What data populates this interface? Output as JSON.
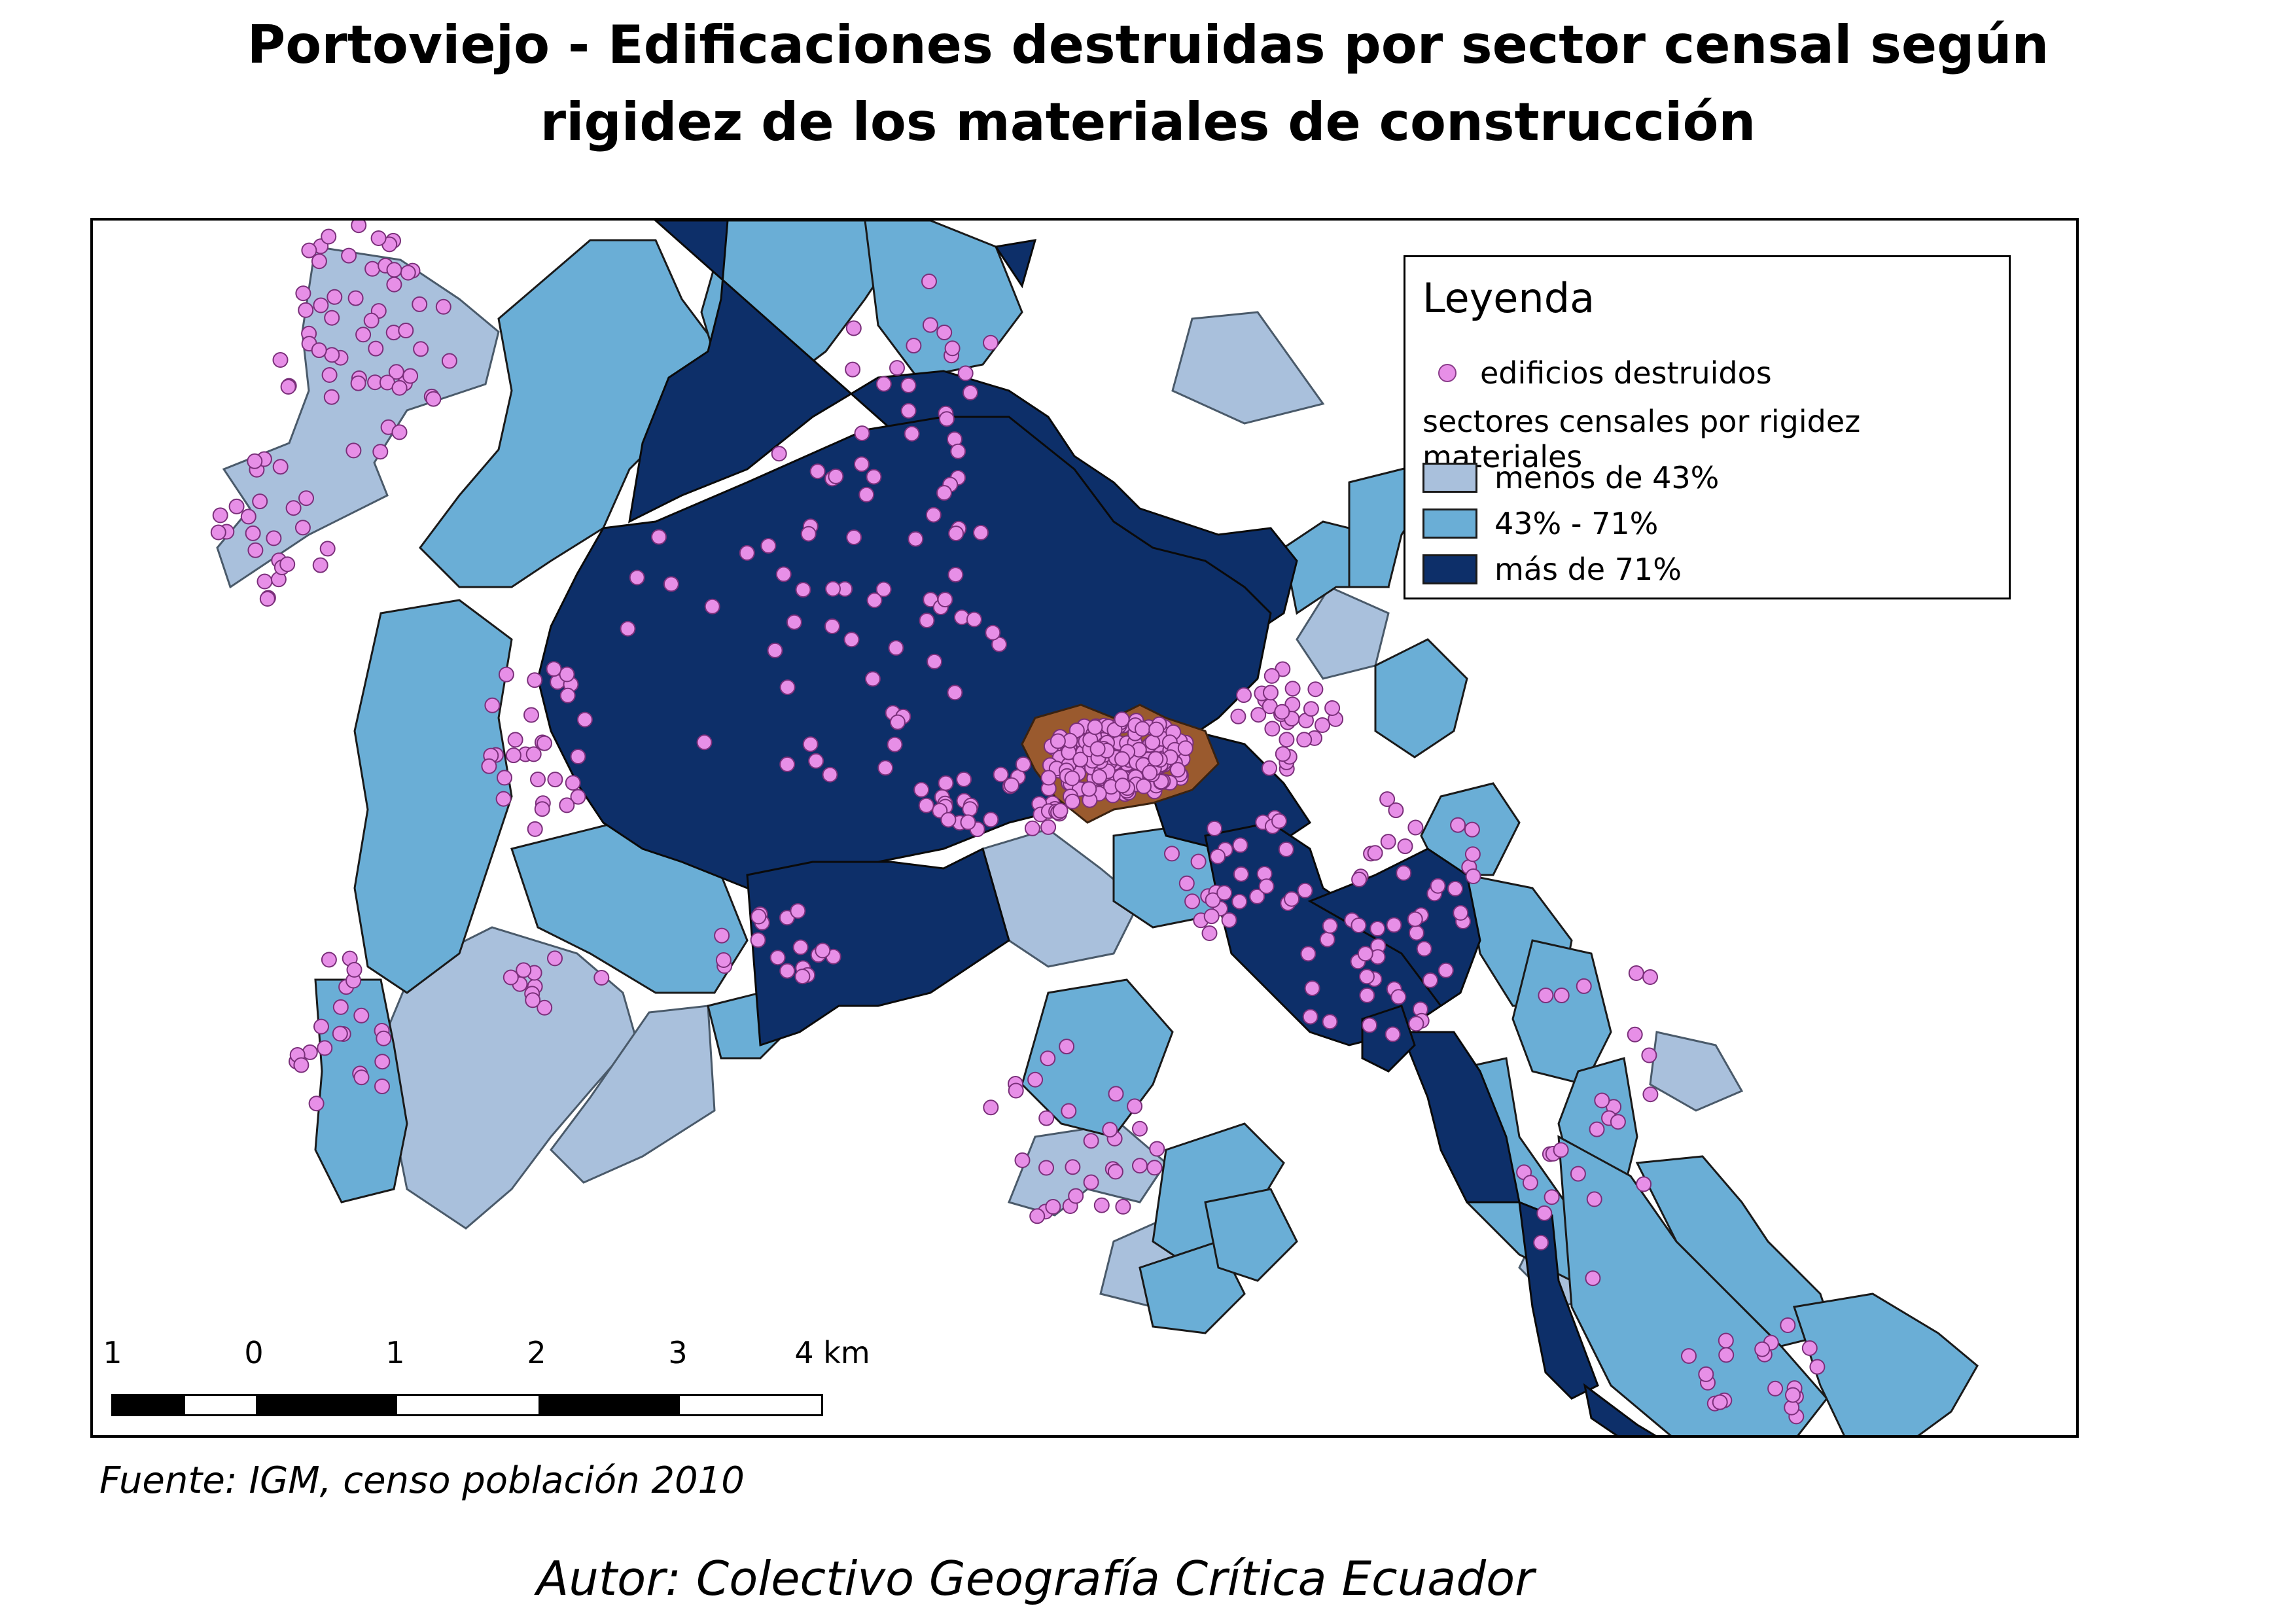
{
  "title": {
    "line1": "Portoviejo - Edificaciones destruidas por sector censal según",
    "line2": "rigidez de los materiales de construcción"
  },
  "legend": {
    "title": "Leyenda",
    "points_label": "edificios destruidos",
    "classes_title": "sectores censales por rigidez materiales",
    "classes": [
      {
        "label": "menos de 43%",
        "color": "#a9c0dc"
      },
      {
        "label": "43% - 71%",
        "color": "#6aaed6"
      },
      {
        "label": "más de 71%",
        "color": "#0d2f69"
      }
    ],
    "point_color": "#e78fe7",
    "highlight_color": "#9a5a2e"
  },
  "scale_bar": {
    "labels": [
      "1",
      "0",
      "1",
      "2",
      "3",
      "4 km"
    ]
  },
  "source": "Fuente: IGM, censo población 2010",
  "author": "Autor: Colectivo Geografía Crítica Ecuador"
}
